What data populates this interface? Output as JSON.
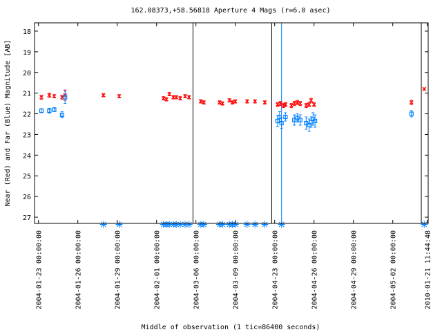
{
  "chart_data": {
    "type": "scatter",
    "title": "162.08373,+58.56818   Aperture 4 Mags (r=6.0 asec)",
    "xlabel": "Middle of observation (1 tic=86400 seconds)",
    "ylabel": "Near (Red) and Far (Blue) Magnitude [AB]",
    "ylim": [
      27.3,
      17.6
    ],
    "y_inverted": true,
    "yticks": [
      18,
      19,
      20,
      21,
      22,
      23,
      24,
      25,
      26,
      27
    ],
    "xlim_days": [
      -0.2,
      19.8
    ],
    "xtick_labels": [
      {
        "x": 0,
        "label": "2004-01-23 00:00:00"
      },
      {
        "x": 2,
        "label": "2004-01-26 00:00:00"
      },
      {
        "x": 4,
        "label": "2004-01-29 00:00:00"
      },
      {
        "x": 6,
        "label": "2004-02-01 00:00:00"
      },
      {
        "x": 8,
        "label": "2004-03-06 00:00:00"
      },
      {
        "x": 10,
        "label": "2004-03-09 00:00:00"
      },
      {
        "x": 12,
        "label": "2004-04-23 00:00:00"
      },
      {
        "x": 14,
        "label": "2004-04-26 00:00:00"
      },
      {
        "x": 16,
        "label": "2004-04-29 00:00:00"
      },
      {
        "x": 18,
        "label": "2004-05-02 00:00:00"
      },
      {
        "x": 19.75,
        "label": "2010-01-21 11:44:48"
      }
    ],
    "segment_breaks": [
      7.85,
      11.85,
      19.45
    ],
    "series": [
      {
        "name": "Near (Red)",
        "color": "#ff0000",
        "marker": "x",
        "points": [
          {
            "x": 0.15,
            "y": 21.2,
            "err": 0.1
          },
          {
            "x": 0.55,
            "y": 21.1,
            "err": 0.1
          },
          {
            "x": 0.8,
            "y": 21.15,
            "err": 0.08
          },
          {
            "x": 1.2,
            "y": 21.2,
            "err": 0.1
          },
          {
            "x": 1.35,
            "y": 21.1,
            "err": 0.25
          },
          {
            "x": 3.3,
            "y": 21.1,
            "err": 0.08
          },
          {
            "x": 4.1,
            "y": 21.15,
            "err": 0.08
          },
          {
            "x": 6.35,
            "y": 21.25,
            "err": 0.08
          },
          {
            "x": 6.5,
            "y": 21.3,
            "err": 0.08
          },
          {
            "x": 6.65,
            "y": 21.05,
            "err": 0.08
          },
          {
            "x": 6.85,
            "y": 21.2,
            "err": 0.08
          },
          {
            "x": 7.0,
            "y": 21.2,
            "err": 0.08
          },
          {
            "x": 7.2,
            "y": 21.25,
            "err": 0.08
          },
          {
            "x": 7.45,
            "y": 21.15,
            "err": 0.08
          },
          {
            "x": 7.65,
            "y": 21.2,
            "err": 0.08
          },
          {
            "x": 8.25,
            "y": 21.4,
            "err": 0.08
          },
          {
            "x": 8.4,
            "y": 21.45,
            "err": 0.08
          },
          {
            "x": 9.2,
            "y": 21.45,
            "err": 0.08
          },
          {
            "x": 9.35,
            "y": 21.5,
            "err": 0.08
          },
          {
            "x": 9.7,
            "y": 21.35,
            "err": 0.08
          },
          {
            "x": 9.85,
            "y": 21.45,
            "err": 0.08
          },
          {
            "x": 10.0,
            "y": 21.4,
            "err": 0.08
          },
          {
            "x": 10.6,
            "y": 21.4,
            "err": 0.08
          },
          {
            "x": 11.0,
            "y": 21.4,
            "err": 0.08
          },
          {
            "x": 11.5,
            "y": 21.45,
            "err": 0.08
          },
          {
            "x": 12.15,
            "y": 21.55,
            "err": 0.1
          },
          {
            "x": 12.3,
            "y": 21.5,
            "err": 0.1
          },
          {
            "x": 12.45,
            "y": 21.6,
            "err": 0.1
          },
          {
            "x": 12.55,
            "y": 21.55,
            "err": 0.1
          },
          {
            "x": 12.85,
            "y": 21.6,
            "err": 0.1
          },
          {
            "x": 13.0,
            "y": 21.5,
            "err": 0.1
          },
          {
            "x": 13.15,
            "y": 21.45,
            "err": 0.1
          },
          {
            "x": 13.3,
            "y": 21.5,
            "err": 0.1
          },
          {
            "x": 13.6,
            "y": 21.6,
            "err": 0.1
          },
          {
            "x": 13.75,
            "y": 21.55,
            "err": 0.1
          },
          {
            "x": 13.85,
            "y": 21.35,
            "err": 0.1
          },
          {
            "x": 14.0,
            "y": 21.55,
            "err": 0.1
          },
          {
            "x": 18.95,
            "y": 21.45,
            "err": 0.1
          },
          {
            "x": 19.6,
            "y": 20.8,
            "err": 0.05
          }
        ]
      },
      {
        "name": "Far (Blue)",
        "color": "#0080ff",
        "marker": "square",
        "points": [
          {
            "x": 0.15,
            "y": 21.85,
            "err": 0.1
          },
          {
            "x": 0.55,
            "y": 21.85,
            "err": 0.12
          },
          {
            "x": 0.8,
            "y": 21.8,
            "err": 0.1
          },
          {
            "x": 1.2,
            "y": 22.05,
            "err": 0.15
          },
          {
            "x": 1.35,
            "y": 21.2,
            "err": 0.3
          },
          {
            "x": 12.15,
            "y": 22.35,
            "err": 0.25
          },
          {
            "x": 12.25,
            "y": 22.15,
            "err": 0.25
          },
          {
            "x": 12.35,
            "y": 22.45,
            "err": 0.25
          },
          {
            "x": 12.55,
            "y": 22.15,
            "err": 0.2
          },
          {
            "x": 13.0,
            "y": 22.3,
            "err": 0.25
          },
          {
            "x": 13.15,
            "y": 22.2,
            "err": 0.2
          },
          {
            "x": 13.3,
            "y": 22.3,
            "err": 0.25
          },
          {
            "x": 13.6,
            "y": 22.45,
            "err": 0.3
          },
          {
            "x": 13.75,
            "y": 22.55,
            "err": 0.3
          },
          {
            "x": 13.85,
            "y": 22.4,
            "err": 0.25
          },
          {
            "x": 13.95,
            "y": 22.25,
            "err": 0.3
          },
          {
            "x": 14.05,
            "y": 22.35,
            "err": 0.3
          },
          {
            "x": 18.95,
            "y": 22.0,
            "err": 0.15
          }
        ]
      }
    ],
    "spikes": [
      {
        "x": 12.35,
        "y_from": 17.6,
        "y_to": 27.3,
        "color": "#0080ff"
      }
    ],
    "upper_limits": {
      "color": "#0080ff",
      "y": 27.35,
      "x": [
        3.3,
        4.1,
        6.35,
        6.5,
        6.65,
        6.85,
        7.0,
        7.2,
        7.45,
        7.65,
        8.25,
        8.4,
        9.2,
        9.35,
        9.7,
        9.85,
        10.0,
        10.6,
        11.0,
        11.5,
        12.35,
        19.6
      ]
    }
  }
}
